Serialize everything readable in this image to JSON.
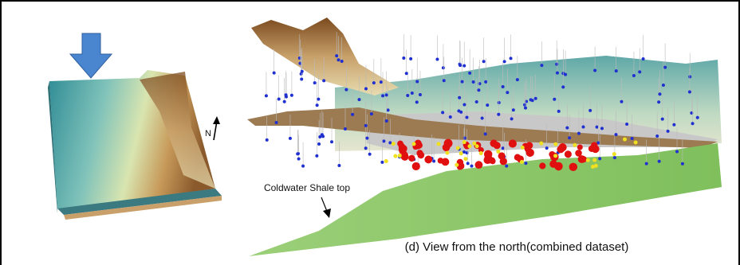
{
  "figure": {
    "north_label": "N",
    "annotation": "Coldwater Shale top",
    "caption": "(d) View from the north(combined dataset)"
  }
}
